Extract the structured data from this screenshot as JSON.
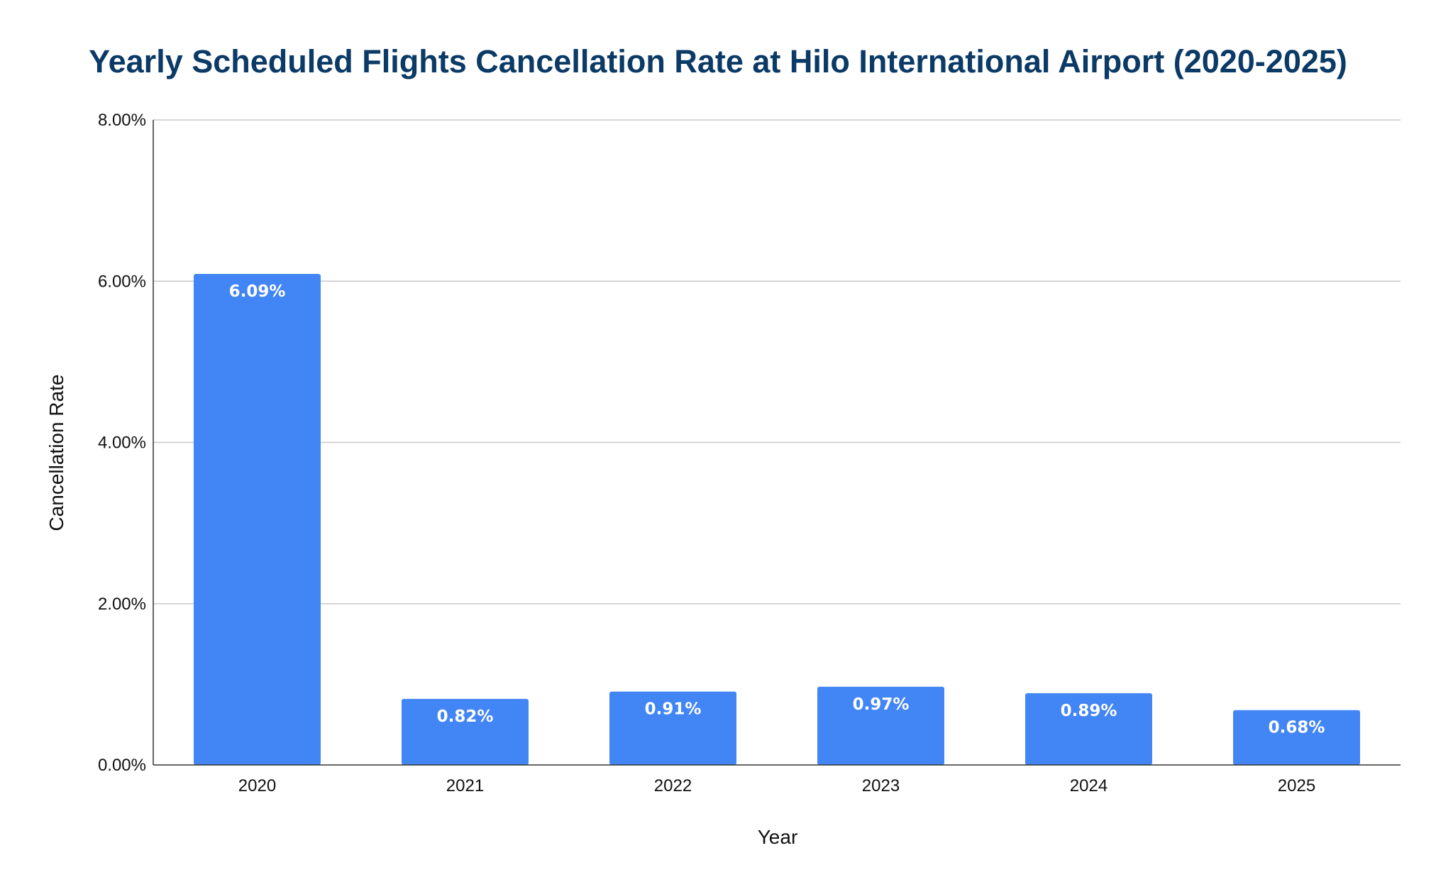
{
  "chart_data": {
    "type": "bar",
    "title": "Yearly Scheduled Flights Cancellation Rate at Hilo International Airport (2020-2025)",
    "xlabel": "Year",
    "ylabel": "Cancellation Rate",
    "categories": [
      "2020",
      "2021",
      "2022",
      "2023",
      "2024",
      "2025"
    ],
    "values": [
      6.09,
      0.82,
      0.91,
      0.97,
      0.89,
      0.68
    ],
    "data_labels": [
      "6.09%",
      "0.82%",
      "0.91%",
      "0.97%",
      "0.89%",
      "0.68%"
    ],
    "ylim": [
      0,
      8
    ],
    "yticks": [
      0,
      2,
      4,
      6,
      8
    ],
    "ytick_labels": [
      "0.00%",
      "2.00%",
      "4.00%",
      "6.00%",
      "8.00%"
    ],
    "grid": true,
    "legend": "none",
    "colors": {
      "bar": "#4285f4",
      "title": "#0b3a66",
      "grid": "#c8c8c8",
      "axis": "#333333"
    }
  }
}
